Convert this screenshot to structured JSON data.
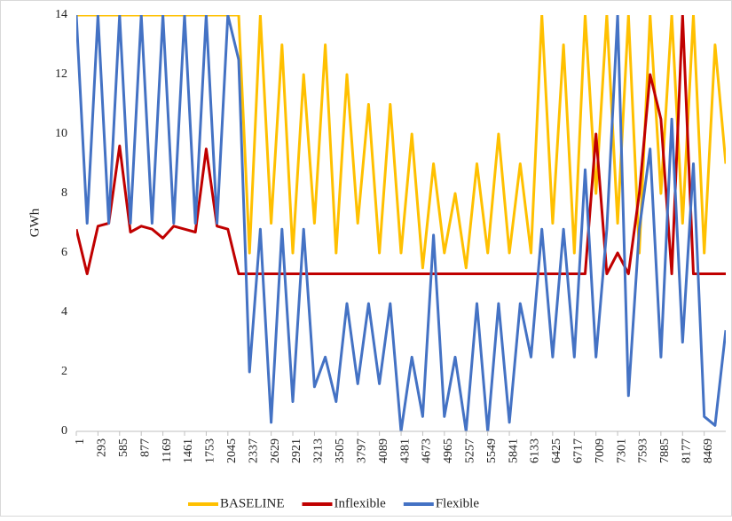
{
  "chart_data": {
    "type": "line",
    "y_label": "GWh",
    "x": [
      1,
      147,
      293,
      439,
      585,
      731,
      877,
      1023,
      1169,
      1315,
      1461,
      1607,
      1753,
      1899,
      2045,
      2191,
      2337,
      2483,
      2629,
      2775,
      2921,
      3067,
      3213,
      3359,
      3505,
      3651,
      3797,
      3943,
      4089,
      4235,
      4381,
      4527,
      4673,
      4819,
      4965,
      5111,
      5257,
      5403,
      5549,
      5695,
      5841,
      5987,
      6133,
      6279,
      6425,
      6571,
      6717,
      6863,
      7009,
      7155,
      7301,
      7447,
      7593,
      7739,
      7885,
      8031,
      8177,
      8323,
      8469,
      8615,
      8760
    ],
    "series": [
      {
        "name": "BASELINE",
        "color": "#ffc000",
        "values": [
          14,
          14,
          14,
          14,
          14,
          14,
          14,
          14,
          14,
          14,
          14,
          14,
          14,
          14,
          14,
          14,
          6,
          14,
          7,
          13,
          6,
          12,
          7,
          13,
          6,
          12,
          7,
          11,
          6,
          11,
          6,
          10,
          5.5,
          9,
          6,
          8,
          5.5,
          9,
          6,
          10,
          6,
          9,
          6,
          14,
          7,
          13,
          6,
          14,
          8,
          14,
          7,
          14,
          6,
          14,
          8,
          14,
          7,
          14,
          6,
          13,
          9
        ]
      },
      {
        "name": "Inflexible",
        "color": "#c00000",
        "values": [
          6.8,
          5.3,
          6.9,
          7,
          9.6,
          6.7,
          6.9,
          6.8,
          6.5,
          6.9,
          6.8,
          6.7,
          9.5,
          6.9,
          6.8,
          5.3,
          5.3,
          5.3,
          5.3,
          5.3,
          5.3,
          5.3,
          5.3,
          5.3,
          5.3,
          5.3,
          5.3,
          5.3,
          5.3,
          5.3,
          5.3,
          5.3,
          5.3,
          5.3,
          5.3,
          5.3,
          5.3,
          5.3,
          5.3,
          5.3,
          5.3,
          5.3,
          5.3,
          5.3,
          5.3,
          5.3,
          5.3,
          5.3,
          10,
          5.3,
          6,
          5.3,
          8,
          12,
          10.5,
          5.3,
          14,
          5.3,
          5.3,
          5.3,
          5.3
        ]
      },
      {
        "name": "Flexible",
        "color": "#4472c4",
        "values": [
          14,
          7,
          14,
          7,
          14,
          7,
          14,
          7,
          14,
          7,
          14,
          7,
          14,
          7,
          14,
          12.5,
          2,
          6.8,
          0.3,
          6.8,
          1,
          6.8,
          1.5,
          2.5,
          1,
          4.3,
          1.6,
          4.3,
          1.6,
          4.3,
          0,
          2.5,
          0.5,
          6.6,
          0.5,
          2.5,
          0,
          4.3,
          0,
          4.3,
          0.3,
          4.3,
          2.5,
          6.8,
          2.5,
          6.8,
          2.5,
          8.8,
          2.5,
          6.8,
          14,
          1.2,
          6.8,
          9.5,
          2.5,
          10.5,
          3,
          9,
          0.5,
          0.2,
          3.4
        ]
      }
    ],
    "xlim": [
      1,
      8760
    ],
    "xticks": [
      1,
      293,
      585,
      877,
      1169,
      1461,
      1753,
      2045,
      2337,
      2629,
      2921,
      3213,
      3505,
      3797,
      4089,
      4381,
      4673,
      4965,
      5257,
      5549,
      5841,
      6133,
      6425,
      6717,
      7009,
      7301,
      7593,
      7885,
      8177,
      8469
    ],
    "ylim": [
      0,
      14
    ],
    "yticks": [
      0,
      2,
      4,
      6,
      8,
      10,
      12,
      14
    ],
    "legend": "bottom"
  }
}
